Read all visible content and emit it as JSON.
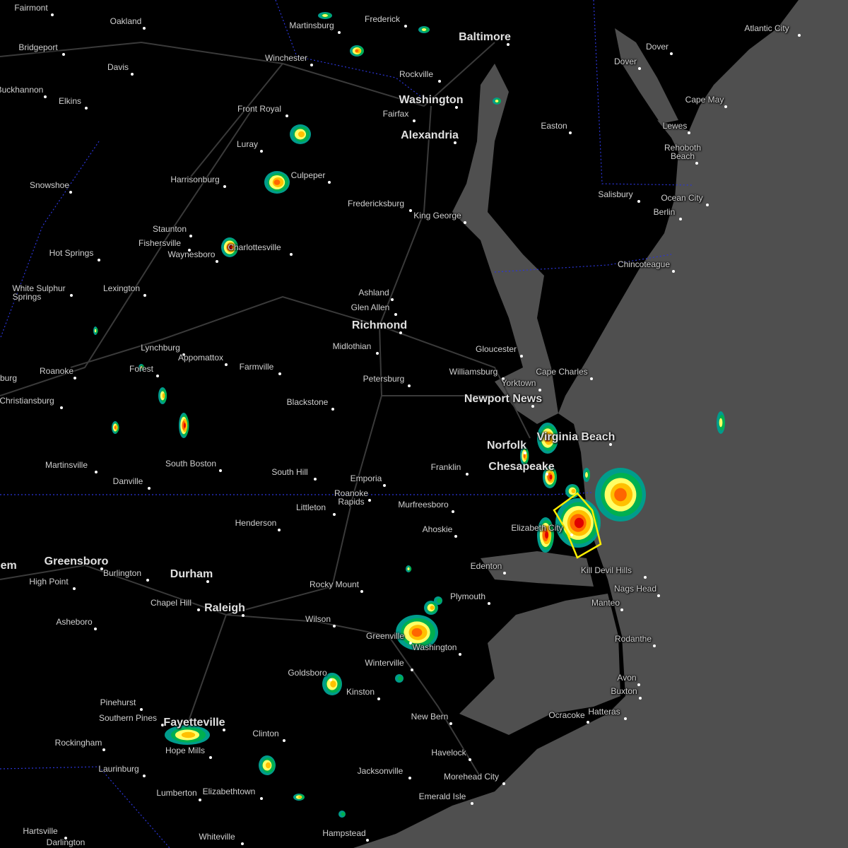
{
  "map": {
    "colors": {
      "land": "#000000",
      "water": "#4f4f4f",
      "roads": "#3a3a3a",
      "state_border": "#2b35d8",
      "warning": "#ffee00",
      "radar": [
        "#009c8c",
        "#00b050",
        "#ffff66",
        "#ffc000",
        "#ff6600",
        "#e00000"
      ]
    },
    "warning_polygon": "severe-thunderstorm-warning",
    "labels": [
      {
        "t": "Fairmont"
      },
      {
        "t": "Oakland"
      },
      {
        "t": "Martinsburg"
      },
      {
        "t": "Frederick"
      },
      {
        "t": "Baltimore",
        "big": true
      },
      {
        "t": "Atlantic City"
      },
      {
        "t": "Bridgeport"
      },
      {
        "t": "Davis"
      },
      {
        "t": "Winchester"
      },
      {
        "t": "Rockville"
      },
      {
        "t": "Dover"
      },
      {
        "t": "Buckhannon"
      },
      {
        "t": "Elkins"
      },
      {
        "t": "Washington",
        "big": true
      },
      {
        "t": "Cape May"
      },
      {
        "t": "Front Royal"
      },
      {
        "t": "Fairfax"
      },
      {
        "t": "Alexandria",
        "big": true
      },
      {
        "t": "Easton"
      },
      {
        "t": "Lewes"
      },
      {
        "t": "Rehoboth"
      },
      {
        "t": "Beach"
      },
      {
        "t": "Luray"
      },
      {
        "t": "Culpeper"
      },
      {
        "t": "Harrisonburg"
      },
      {
        "t": "Snowshoe"
      },
      {
        "t": "Fredericksburg"
      },
      {
        "t": "Salisbury"
      },
      {
        "t": "Ocean City"
      },
      {
        "t": "Berlin"
      },
      {
        "t": "King George"
      },
      {
        "t": "Staunton"
      },
      {
        "t": "Fishersville"
      },
      {
        "t": "Charlottesville"
      },
      {
        "t": "Waynesboro"
      },
      {
        "t": "Hot Springs"
      },
      {
        "t": "Chincoteague"
      },
      {
        "t": "White Sulphur"
      },
      {
        "t": "Springs"
      },
      {
        "t": "Lexington"
      },
      {
        "t": "Ashland"
      },
      {
        "t": "Glen Allen"
      },
      {
        "t": "Richmond",
        "big": true
      },
      {
        "t": "Midlothian"
      },
      {
        "t": "Lynchburg"
      },
      {
        "t": "Gloucester"
      },
      {
        "t": "Appomattox"
      },
      {
        "t": "Farmville"
      },
      {
        "t": "Forest"
      },
      {
        "t": "Roanoke"
      },
      {
        "t": "Williamsburg"
      },
      {
        "t": "Cape Charles"
      },
      {
        "t": "Petersburg"
      },
      {
        "t": "Yorktown"
      },
      {
        "t": "burg"
      },
      {
        "t": "Christiansburg"
      },
      {
        "t": "Blackstone"
      },
      {
        "t": "Newport News",
        "big": true
      },
      {
        "t": "Virginia Beach",
        "big": true
      },
      {
        "t": "Norfolk",
        "big": true
      },
      {
        "t": "Chesapeake",
        "big": true
      },
      {
        "t": "Martinsville"
      },
      {
        "t": "South Boston"
      },
      {
        "t": "Franklin"
      },
      {
        "t": "Danville"
      },
      {
        "t": "South Hill"
      },
      {
        "t": "Emporia"
      },
      {
        "t": "Roanoke"
      },
      {
        "t": "Rapids"
      },
      {
        "t": "Littleton"
      },
      {
        "t": "Murfreesboro"
      },
      {
        "t": "Henderson"
      },
      {
        "t": "Ahoskie"
      },
      {
        "t": "Elizabeth City"
      },
      {
        "t": "Greensboro",
        "big": true
      },
      {
        "t": "Edenton"
      },
      {
        "t": "Kill Devil Hills"
      },
      {
        "t": "Burlington"
      },
      {
        "t": "Durham",
        "big": true
      },
      {
        "t": "High Point"
      },
      {
        "t": "Rocky Mount"
      },
      {
        "t": "Nags Head"
      },
      {
        "t": "Chapel Hill"
      },
      {
        "t": "Plymouth"
      },
      {
        "t": "Manteo"
      },
      {
        "t": "Raleigh",
        "big": true
      },
      {
        "t": "Wilson"
      },
      {
        "t": "Asheboro"
      },
      {
        "t": "Greenville"
      },
      {
        "t": "Washington"
      },
      {
        "t": "Rodanthe"
      },
      {
        "t": "Winterville"
      },
      {
        "t": "Goldsboro"
      },
      {
        "t": "Kinston"
      },
      {
        "t": "Avon"
      },
      {
        "t": "Buxton"
      },
      {
        "t": "Pinehurst"
      },
      {
        "t": "Hatteras"
      },
      {
        "t": "Ocracoke"
      },
      {
        "t": "New Bern"
      },
      {
        "t": "Southern Pines"
      },
      {
        "t": "Fayetteville",
        "big": true
      },
      {
        "t": "Clinton"
      },
      {
        "t": "Rockingham"
      },
      {
        "t": "Hope Mills"
      },
      {
        "t": "Havelock"
      },
      {
        "t": "Laurinburg"
      },
      {
        "t": "Jacksonville"
      },
      {
        "t": "Morehead City"
      },
      {
        "t": "Lumberton"
      },
      {
        "t": "Elizabethtown"
      },
      {
        "t": "Emerald Isle"
      },
      {
        "t": "Hampstead"
      },
      {
        "t": "Hartsville"
      },
      {
        "t": "Whiteville"
      },
      {
        "t": "Darlington"
      },
      {
        "t": "lem",
        "big": true
      },
      {
        "t": "Dover"
      }
    ]
  }
}
